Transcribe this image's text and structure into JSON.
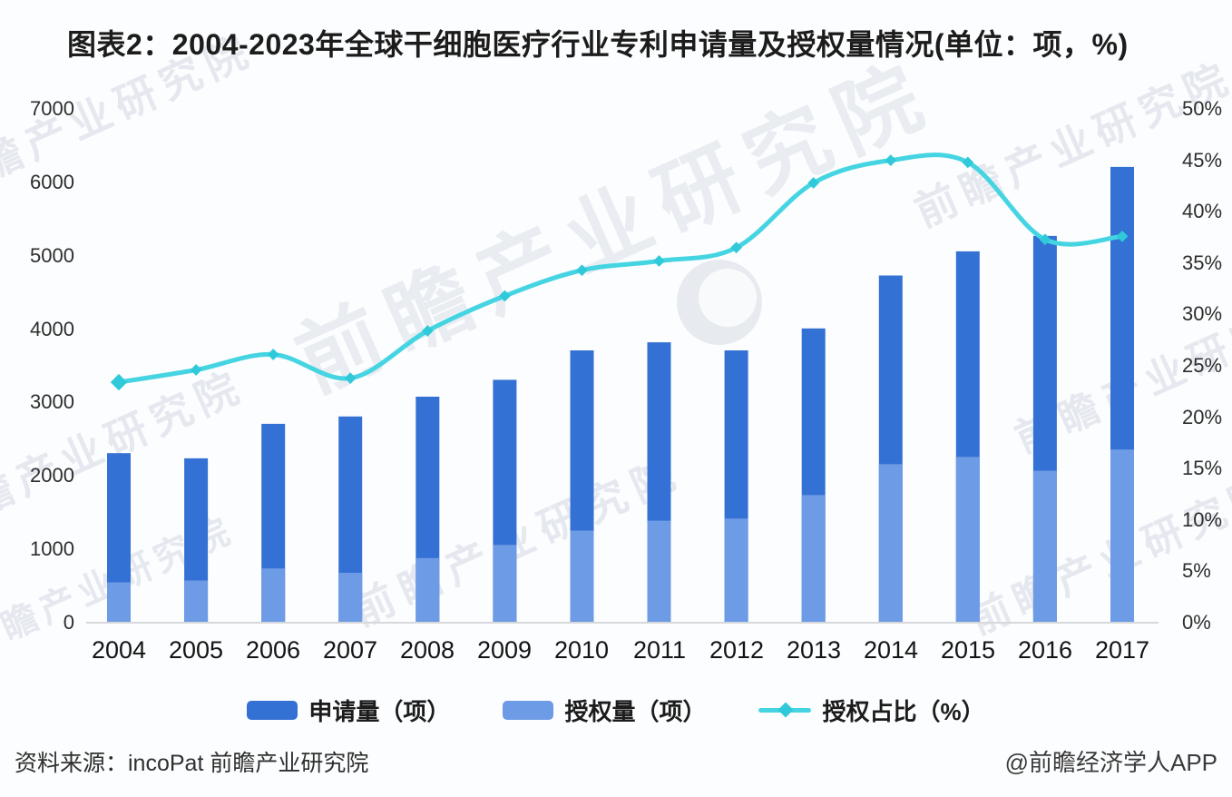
{
  "title": "图表2：2004-2023年全球干细胞医疗行业专利申请量及授权量情况(单位：项，%)",
  "watermark": {
    "text": "前瞻产业研究院"
  },
  "chart_data": {
    "type": "bar",
    "title": "图表2：2004-2023年全球干细胞医疗行业专利申请量及授权量情况(单位：项，%)",
    "categories": [
      "2004",
      "2005",
      "2006",
      "2007",
      "2008",
      "2009",
      "2010",
      "2011",
      "2012",
      "2013",
      "2014",
      "2015",
      "2016",
      "2017"
    ],
    "series": [
      {
        "name": "申请量（项）",
        "type": "bar",
        "color": "#3471d4",
        "axis": "left",
        "values": [
          2310,
          2240,
          2710,
          2810,
          3080,
          3310,
          3710,
          3820,
          3710,
          4010,
          4730,
          5060,
          5270,
          6210
        ]
      },
      {
        "name": "授权量（项）",
        "type": "bar",
        "color": "#6e9be5",
        "axis": "left",
        "values": [
          550,
          575,
          740,
          680,
          880,
          1060,
          1255,
          1390,
          1420,
          1740,
          2160,
          2260,
          2070,
          2360
        ]
      },
      {
        "name": "授权占比（%）",
        "type": "line",
        "color": "#45d4e2",
        "marker_color": "#2fc9da",
        "axis": "right",
        "values": [
          23.4,
          24.6,
          26.1,
          23.8,
          28.4,
          31.8,
          34.3,
          35.2,
          36.5,
          42.8,
          45.0,
          44.8,
          37.3,
          37.6
        ]
      }
    ],
    "left_axis": {
      "min": 0,
      "max": 7000,
      "step": 1000,
      "ticks": [
        "0",
        "1000",
        "2000",
        "3000",
        "4000",
        "5000",
        "6000",
        "7000"
      ]
    },
    "right_axis": {
      "min": 0,
      "max": 50,
      "step": 5,
      "ticks": [
        "0%",
        "5%",
        "10%",
        "15%",
        "20%",
        "25%",
        "30%",
        "35%",
        "40%",
        "45%",
        "50%"
      ]
    },
    "grid": false,
    "legend_position": "bottom",
    "bar_mode": "overlay",
    "axis_line_color": "#d6d8db"
  },
  "legend": {
    "items": [
      {
        "label": "申请量（项）"
      },
      {
        "label": "授权量（项）"
      },
      {
        "label": "授权占比（%）"
      }
    ]
  },
  "footer": {
    "source": "资料来源：incoPat 前瞻产业研究院",
    "credit": "@前瞻经济学人APP"
  }
}
